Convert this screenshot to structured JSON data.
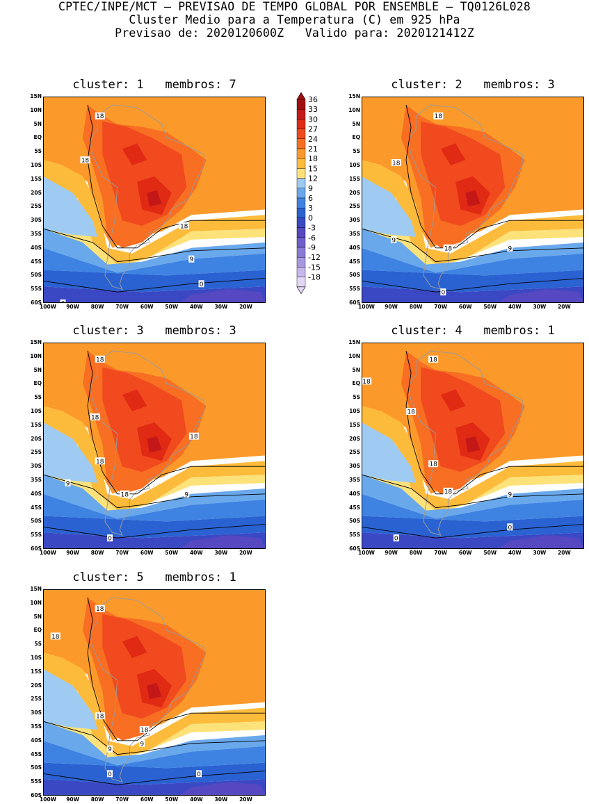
{
  "header": {
    "line1": "CPTEC/INPE/MCT — PREVISAO DE TEMPO GLOBAL POR ENSEMBLE — TQ0126L028",
    "line2": "Cluster Medio para a Temperatura (C) em 925 hPa",
    "line3": "Previsao de: 2020120600Z   Valido para: 2020121412Z"
  },
  "lat_ticks": [
    "15N",
    "10N",
    "5N",
    "EQ",
    "5S",
    "10S",
    "15S",
    "20S",
    "25S",
    "30S",
    "35S",
    "40S",
    "45S",
    "50S",
    "55S",
    "60S"
  ],
  "lon_ticks": [
    "100W",
    "90W",
    "80W",
    "70W",
    "60W",
    "50W",
    "40W",
    "30W",
    "20W"
  ],
  "colorbar": {
    "levels": [
      "36",
      "33",
      "30",
      "27",
      "24",
      "21",
      "18",
      "15",
      "12",
      "9",
      "6",
      "3",
      "0",
      "-3",
      "-6",
      "-9",
      "-12",
      "-15",
      "-18"
    ],
    "colors": [
      "#a01010",
      "#c41818",
      "#e02a14",
      "#f04a1e",
      "#f86e22",
      "#fb9a2a",
      "#fdbb3c",
      "#fde27a",
      "#9fcbf2",
      "#6aa8ec",
      "#3f83e2",
      "#2a62d2",
      "#3a48c4",
      "#5548c0",
      "#6e5ecc",
      "#8a7ad8",
      "#a898e2",
      "#c6b8ee",
      "#e2d8f6"
    ]
  },
  "panels": [
    {
      "title": "cluster: 1   membros: 7",
      "labels": [
        {
          "lat": 8,
          "lon": -77,
          "t": "18"
        },
        {
          "lat": -8,
          "lon": -83,
          "t": "18"
        },
        {
          "lat": -32,
          "lon": -43,
          "t": "18"
        },
        {
          "lat": -44,
          "lon": -40,
          "t": "9"
        },
        {
          "lat": -53,
          "lon": -36,
          "t": "0"
        },
        {
          "lat": -60,
          "lon": -92,
          "t": "0"
        }
      ]
    },
    {
      "title": "cluster: 2   membros: 3",
      "labels": [
        {
          "lat": 8,
          "lon": -69,
          "t": "18"
        },
        {
          "lat": -9,
          "lon": -86,
          "t": "18"
        },
        {
          "lat": -37,
          "lon": -87,
          "t": "9"
        },
        {
          "lat": -40,
          "lon": -65,
          "t": "18"
        },
        {
          "lat": -40,
          "lon": -40,
          "t": "9"
        },
        {
          "lat": -56,
          "lon": -67,
          "t": "0"
        }
      ]
    },
    {
      "title": "cluster: 3   membros: 3",
      "labels": [
        {
          "lat": 9,
          "lon": -77,
          "t": "18"
        },
        {
          "lat": -12,
          "lon": -79,
          "t": "18"
        },
        {
          "lat": -19,
          "lon": -39,
          "t": "18"
        },
        {
          "lat": -28,
          "lon": -77,
          "t": "18"
        },
        {
          "lat": -36,
          "lon": -90,
          "t": "9"
        },
        {
          "lat": -40,
          "lon": -67,
          "t": "18"
        },
        {
          "lat": -40,
          "lon": -42,
          "t": "9"
        },
        {
          "lat": -56,
          "lon": -73,
          "t": "0"
        }
      ]
    },
    {
      "title": "cluster: 4   membros: 1",
      "labels": [
        {
          "lat": 9,
          "lon": -71,
          "t": "18"
        },
        {
          "lat": 1,
          "lon": -98,
          "t": "18"
        },
        {
          "lat": -10,
          "lon": -80,
          "t": "18"
        },
        {
          "lat": -29,
          "lon": -71,
          "t": "18"
        },
        {
          "lat": -39,
          "lon": -65,
          "t": "18"
        },
        {
          "lat": -40,
          "lon": -40,
          "t": "9"
        },
        {
          "lat": -52,
          "lon": -40,
          "t": "0"
        },
        {
          "lat": -56,
          "lon": -86,
          "t": "0"
        }
      ]
    },
    {
      "title": "cluster: 5   membros: 1",
      "labels": [
        {
          "lat": 8,
          "lon": -77,
          "t": "18"
        },
        {
          "lat": -2,
          "lon": -95,
          "t": "18"
        },
        {
          "lat": -31,
          "lon": -77,
          "t": "18"
        },
        {
          "lat": -36,
          "lon": -59,
          "t": "18"
        },
        {
          "lat": -41,
          "lon": -60,
          "t": "9"
        },
        {
          "lat": -43,
          "lon": -73,
          "t": "9"
        },
        {
          "lat": -52,
          "lon": -73,
          "t": "0"
        },
        {
          "lat": -52,
          "lon": -37,
          "t": "0"
        }
      ]
    }
  ]
}
